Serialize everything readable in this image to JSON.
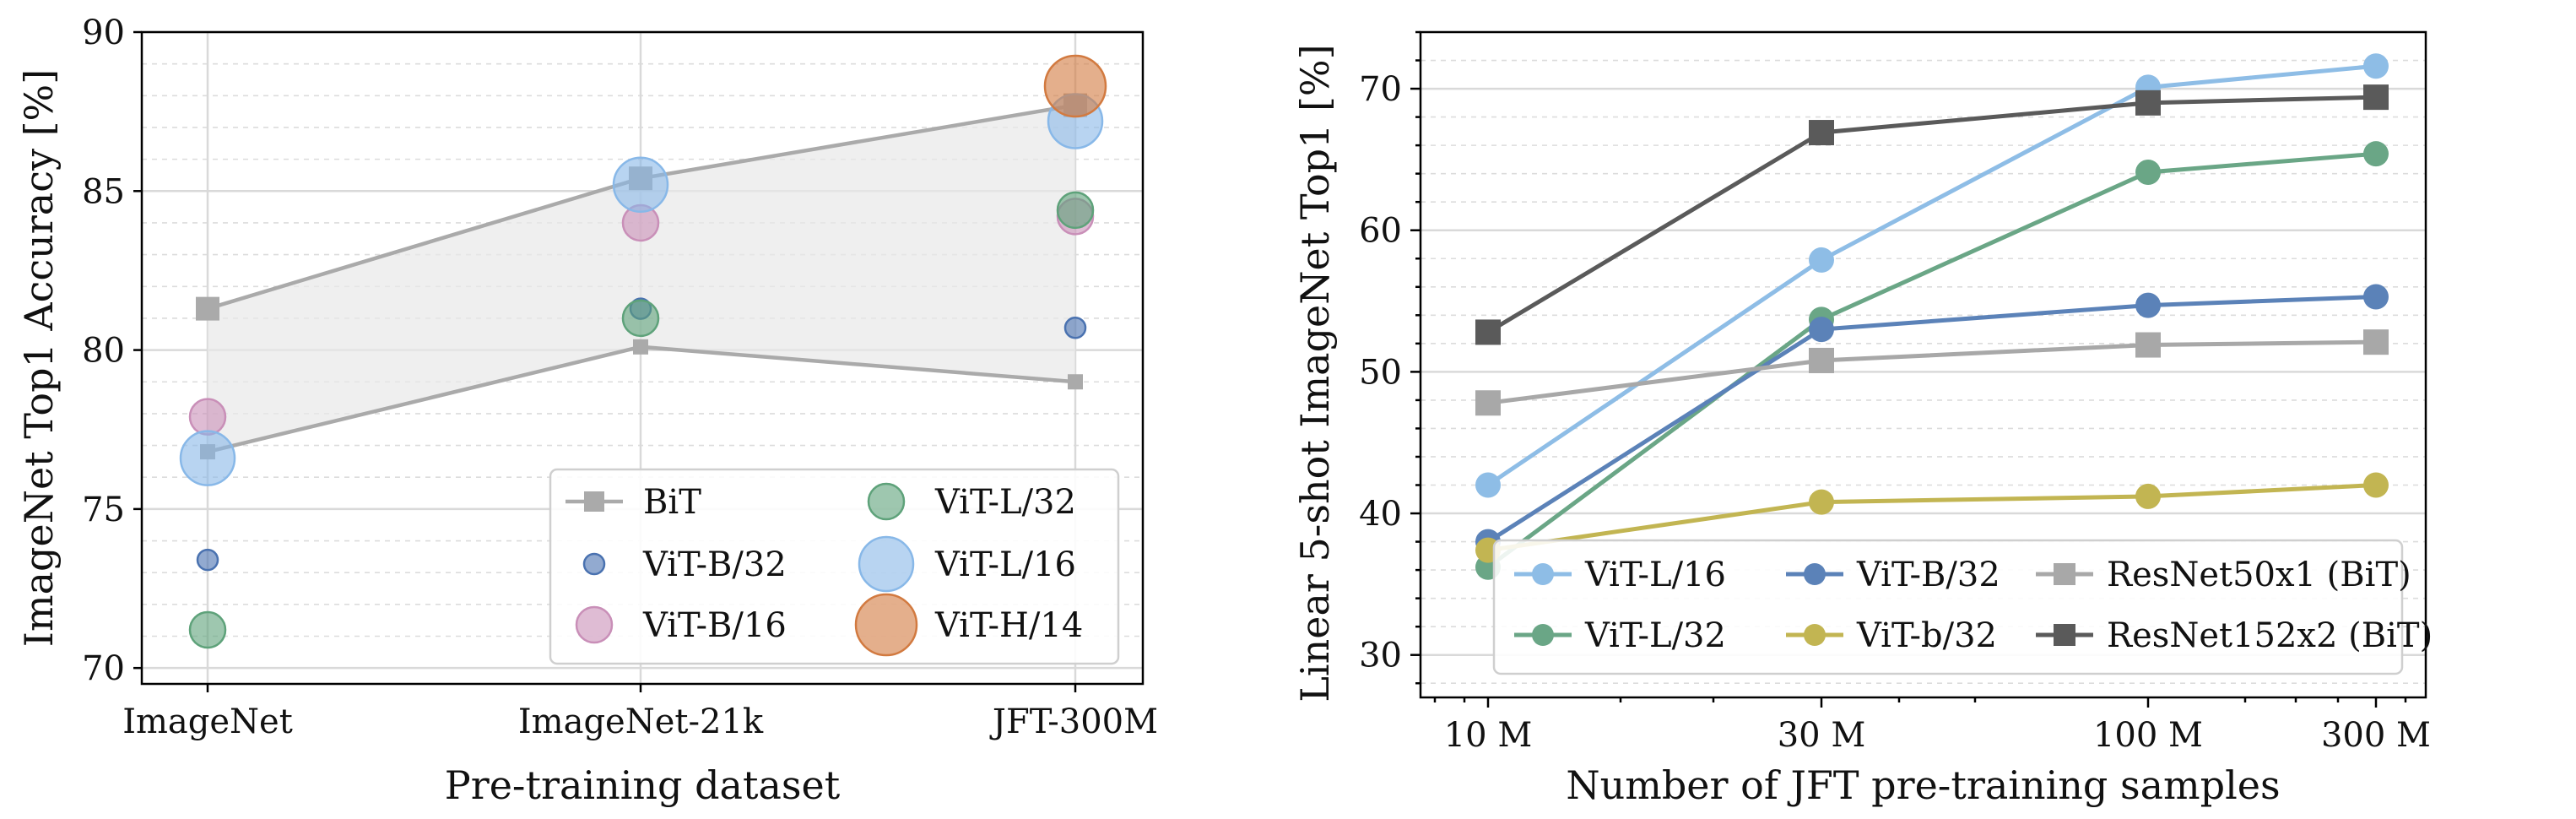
{
  "chart_data": [
    {
      "type": "scatter",
      "xlabel": "Pre-training dataset",
      "ylabel": "ImageNet Top1 Accuracy [%]",
      "categories": [
        "ImageNet",
        "ImageNet-21k",
        "JFT-300M"
      ],
      "ylim": [
        69.5,
        90
      ],
      "yticks": [
        70,
        75,
        80,
        85,
        90
      ],
      "grid": true,
      "legend_position": "bottom-right",
      "bit_band": {
        "name": "BiT",
        "color": "#aaaaaa",
        "fill_color": "#e8e8e8",
        "upper": [
          81.3,
          85.4,
          87.7
        ],
        "lower": [
          76.8,
          80.1,
          79.0
        ]
      },
      "series": [
        {
          "name": "ViT-B/32",
          "color": "#4a72b0",
          "size": "small",
          "values": [
            73.4,
            81.3,
            80.7
          ]
        },
        {
          "name": "ViT-B/16",
          "color": "#c98fb8",
          "size": "medium",
          "values": [
            77.9,
            84.0,
            84.2
          ]
        },
        {
          "name": "ViT-L/32",
          "color": "#5ea27a",
          "size": "medium",
          "values": [
            71.2,
            81.0,
            84.4
          ]
        },
        {
          "name": "ViT-L/16",
          "color": "#88b8e8",
          "size": "large",
          "values": [
            76.6,
            85.2,
            87.2
          ]
        },
        {
          "name": "ViT-H/14",
          "color": "#d27a40",
          "size": "xlarge",
          "values": [
            null,
            null,
            88.3
          ]
        }
      ],
      "legend": [
        "BiT",
        "ViT-B/32",
        "ViT-B/16",
        "ViT-L/32",
        "ViT-L/16",
        "ViT-H/14"
      ]
    },
    {
      "type": "line",
      "xlabel": "Number of JFT pre-training samples",
      "ylabel": "Linear 5-shot ImageNet Top1 [%]",
      "x_scale": "log",
      "x": [
        9000000,
        30000000,
        90000000,
        300000000
      ],
      "x_tick_labels": [
        "10 M",
        "30 M",
        "100 M",
        "300 M"
      ],
      "ylim": [
        27,
        74
      ],
      "yticks": [
        30,
        40,
        50,
        60,
        70
      ],
      "grid": true,
      "legend_position": "bottom",
      "series": [
        {
          "name": "ViT-L/16",
          "color": "#8ebde6",
          "marker": "circle",
          "values": [
            42.0,
            57.9,
            70.1,
            71.6
          ]
        },
        {
          "name": "ViT-L/32",
          "color": "#6aa686",
          "marker": "circle",
          "values": [
            36.2,
            53.7,
            64.1,
            65.4
          ]
        },
        {
          "name": "ViT-B/32",
          "color": "#5b82b8",
          "marker": "circle",
          "values": [
            38.0,
            53.0,
            54.7,
            55.3
          ]
        },
        {
          "name": "ViT-b/32",
          "color": "#c2b552",
          "marker": "circle",
          "values": [
            37.4,
            40.8,
            41.2,
            42.0
          ]
        },
        {
          "name": "ResNet50x1 (BiT)",
          "color": "#a8a8a8",
          "marker": "square",
          "values": [
            47.8,
            50.8,
            51.9,
            52.1
          ]
        },
        {
          "name": "ResNet152x2 (BiT)",
          "color": "#5a5a5a",
          "marker": "square",
          "values": [
            52.8,
            66.9,
            69.0,
            69.4
          ]
        }
      ],
      "legend": [
        "ViT-L/16",
        "ViT-B/32",
        "ResNet50x1 (BiT)",
        "ViT-L/32",
        "ViT-b/32",
        "ResNet152x2 (BiT)"
      ]
    }
  ]
}
